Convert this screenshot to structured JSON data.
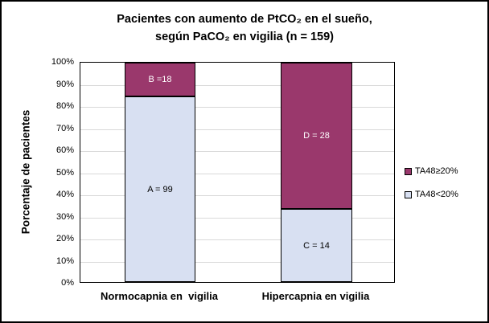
{
  "chart_data": {
    "type": "bar",
    "stacking": "percent",
    "title": "Pacientes con aumento de PtCO₂ en el sueño,\nsegún PaCO₂ en vigilia (n = 159)",
    "ylabel": "Porcentaje de pacientes",
    "xlabel": "",
    "ylim": [
      0,
      100
    ],
    "grid": true,
    "grid_color": "#D9D9D9",
    "plot_border_color": "#000000",
    "ytick_labels": [
      "0%",
      "10%",
      "20%",
      "30%",
      "40%",
      "50%",
      "60%",
      "70%",
      "80%",
      "90%",
      "100%"
    ],
    "categories": [
      "Normocapnia en  vigilia",
      "Hipercapnia en vigilia"
    ],
    "series": [
      {
        "name": "TA48<20%",
        "color": "#D8E0F2",
        "label_color": "#000000",
        "values": [
          99,
          14
        ],
        "data_labels": [
          "A = 99",
          "C = 14"
        ]
      },
      {
        "name": "TA48≥20%",
        "color": "#9A386C",
        "label_color": "#FFFFFF",
        "values": [
          18,
          28
        ],
        "data_labels": [
          "B =18",
          "D = 28"
        ]
      }
    ],
    "legend": {
      "position": "right",
      "entries": [
        {
          "label": "TA48≥20%",
          "color": "#9A386C"
        },
        {
          "label": "TA48<20%",
          "color": "#D8E0F2"
        }
      ]
    }
  }
}
